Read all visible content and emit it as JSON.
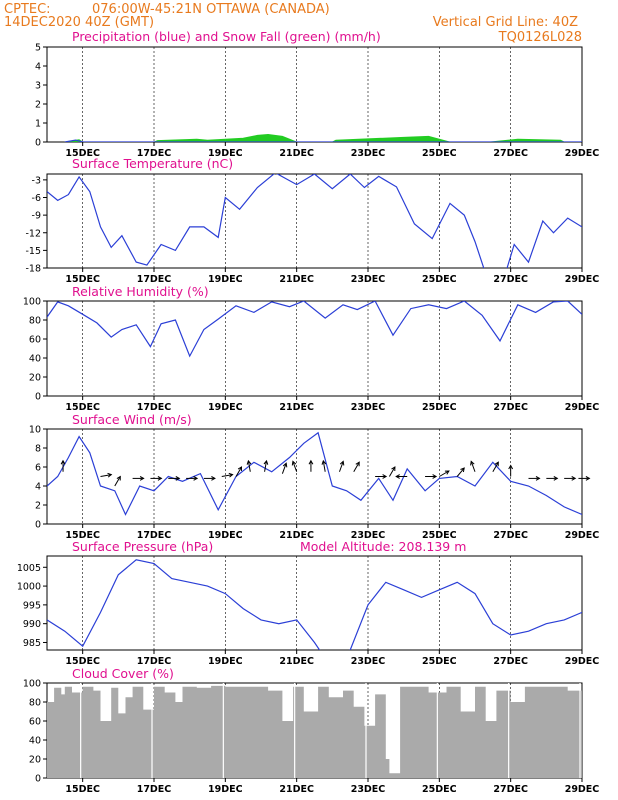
{
  "header": {
    "source": "CPTEC:",
    "location": "076:00W-45:21N   OTTAWA (CANADA)",
    "run": "14DEC2020 40Z (GMT)",
    "grid_note": "Vertical Grid Line: 40Z",
    "code": "TQ0126L028"
  },
  "x_ticks": [
    "15DEC",
    "17DEC",
    "19DEC",
    "21DEC",
    "23DEC",
    "25DEC",
    "27DEC",
    "29DEC"
  ],
  "colors": {
    "header": "#e87a1e",
    "title": "#e0108f",
    "line": "#2b3fd6",
    "snow": "#22cc22",
    "cloud": "#aaaaaa",
    "arrow": "#000000"
  },
  "chart_data": [
    {
      "id": "precip",
      "type": "area",
      "title": "Precipitation (blue) and Snow Fall (green) (mm/h)",
      "ylim": [
        0,
        5
      ],
      "yticks": [
        0,
        1,
        2,
        3,
        4,
        5
      ],
      "grid": false,
      "snow": {
        "x": [
          0.5,
          0.9,
          1.0,
          3.0,
          3.1,
          4.2,
          4.5,
          5.5,
          5.9,
          6.2,
          6.6,
          7.0,
          8.0,
          8.1,
          10.0,
          10.7,
          11.3,
          12.4,
          13.2,
          14.4,
          14.5,
          15.0
        ],
        "y": [
          0,
          0.12,
          0,
          0,
          0.08,
          0.15,
          0.1,
          0.2,
          0.35,
          0.4,
          0.3,
          0,
          0,
          0.1,
          0.25,
          0.3,
          0,
          0,
          0.15,
          0.1,
          0,
          0
        ]
      },
      "precip": {
        "x": [
          0.5,
          0.8,
          1.0,
          15.0
        ],
        "y": [
          0,
          0.1,
          0,
          0
        ]
      }
    },
    {
      "id": "temperature",
      "type": "line",
      "title": "Surface Temperature (nC)",
      "ylim": [
        -18,
        -2
      ],
      "yticks": [
        -3,
        -6,
        -9,
        -12,
        -15,
        -18
      ],
      "grid": false,
      "x": [
        0,
        0.3,
        0.6,
        0.9,
        1.2,
        1.5,
        1.8,
        2.1,
        2.5,
        2.8,
        3.2,
        3.6,
        4.0,
        4.4,
        4.8,
        5.0,
        5.4,
        5.9,
        6.4,
        7.0,
        7.5,
        8.0,
        8.5,
        8.9,
        9.3,
        9.8,
        10.3,
        10.8,
        11.3,
        11.7,
        12.0,
        12.3,
        12.8,
        13.1,
        13.5,
        13.9,
        14.2,
        14.6,
        15.0
      ],
      "y": [
        -5,
        -6.5,
        -5.5,
        -2.5,
        -5,
        -11,
        -14.5,
        -12.5,
        -17,
        -17.5,
        -14,
        -15,
        -11,
        -11,
        -12.8,
        -6,
        -8,
        -4.3,
        -1.8,
        -3.8,
        -2,
        -4.5,
        -2,
        -4.3,
        -2.4,
        -4.2,
        -10.5,
        -13,
        -7,
        -9,
        -13.5,
        -19,
        -20,
        -14,
        -17,
        -10,
        -12,
        -9.5,
        -11
      ]
    },
    {
      "id": "humidity",
      "type": "line",
      "title": "Relative Humidity (%)",
      "ylim": [
        0,
        100
      ],
      "yticks": [
        0,
        20,
        40,
        60,
        80,
        100
      ],
      "grid": false,
      "x": [
        0,
        0.3,
        0.6,
        1.0,
        1.4,
        1.8,
        2.1,
        2.5,
        2.9,
        3.2,
        3.6,
        4.0,
        4.4,
        4.8,
        5.3,
        5.8,
        6.3,
        6.8,
        7.2,
        7.8,
        8.3,
        8.7,
        9.2,
        9.7,
        10.2,
        10.7,
        11.2,
        11.7,
        12.2,
        12.7,
        13.2,
        13.7,
        14.2,
        14.6,
        15.0
      ],
      "y": [
        83,
        99,
        95,
        86,
        77,
        62,
        70,
        75,
        52,
        76,
        80,
        42,
        70,
        81,
        95,
        88,
        99,
        94,
        100,
        82,
        96,
        91,
        100,
        64,
        92,
        96,
        92,
        100,
        85,
        58,
        96,
        88,
        99,
        100,
        86
      ]
    },
    {
      "id": "wind",
      "type": "line",
      "title": "Surface Wind (m/s)",
      "ylim": [
        0,
        10
      ],
      "yticks": [
        0,
        2,
        4,
        6,
        8,
        10
      ],
      "grid": false,
      "x": [
        0,
        0.3,
        0.6,
        0.9,
        1.2,
        1.5,
        1.9,
        2.2,
        2.6,
        3.0,
        3.4,
        3.8,
        4.3,
        4.8,
        5.3,
        5.8,
        6.3,
        6.8,
        7.2,
        7.6,
        8.0,
        8.4,
        8.8,
        9.3,
        9.7,
        10.1,
        10.6,
        11.0,
        11.5,
        12.0,
        12.5,
        13.0,
        13.5,
        14.0,
        14.5,
        15.0
      ],
      "y": [
        4,
        5,
        7,
        9.2,
        7.5,
        4,
        3.5,
        1,
        4,
        3.5,
        5,
        4.5,
        5.3,
        1.5,
        5,
        6.5,
        5.5,
        7,
        8.5,
        9.6,
        4,
        3.5,
        2.5,
        4.8,
        2.5,
        5.8,
        3.5,
        4.8,
        5,
        4,
        6.5,
        4.5,
        4,
        3,
        1.8,
        1
      ],
      "arrows": [
        {
          "x": 0.45,
          "speed": 5.5,
          "dir": 90
        },
        {
          "x": 1.5,
          "speed": 5,
          "dir": 10
        },
        {
          "x": 1.9,
          "speed": 4,
          "dir": 60
        },
        {
          "x": 2.4,
          "speed": 4.8,
          "dir": 0
        },
        {
          "x": 2.9,
          "speed": 4.8,
          "dir": 0
        },
        {
          "x": 3.4,
          "speed": 4.8,
          "dir": 0
        },
        {
          "x": 3.9,
          "speed": 4.8,
          "dir": 0
        },
        {
          "x": 4.4,
          "speed": 4.8,
          "dir": 0
        },
        {
          "x": 4.9,
          "speed": 5,
          "dir": 10
        },
        {
          "x": 5.3,
          "speed": 5,
          "dir": 60
        },
        {
          "x": 5.7,
          "speed": 5.5,
          "dir": 100
        },
        {
          "x": 6.1,
          "speed": 5.5,
          "dir": 80
        },
        {
          "x": 6.6,
          "speed": 5.3,
          "dir": 70
        },
        {
          "x": 7.0,
          "speed": 5.5,
          "dir": 110
        },
        {
          "x": 7.4,
          "speed": 5.5,
          "dir": 90
        },
        {
          "x": 7.8,
          "speed": 5.5,
          "dir": 100
        },
        {
          "x": 8.2,
          "speed": 5.5,
          "dir": 70
        },
        {
          "x": 8.6,
          "speed": 5.5,
          "dir": 60
        },
        {
          "x": 9.2,
          "speed": 5,
          "dir": 0
        },
        {
          "x": 9.6,
          "speed": 5,
          "dir": 60
        },
        {
          "x": 10.1,
          "speed": 5,
          "dir": 180
        },
        {
          "x": 10.6,
          "speed": 5,
          "dir": 0
        },
        {
          "x": 11.0,
          "speed": 5,
          "dir": 30
        },
        {
          "x": 11.5,
          "speed": 5,
          "dir": 50
        },
        {
          "x": 12.0,
          "speed": 5.5,
          "dir": 110
        },
        {
          "x": 12.5,
          "speed": 5.5,
          "dir": 60
        },
        {
          "x": 13.0,
          "speed": 5,
          "dir": 90
        },
        {
          "x": 13.5,
          "speed": 4.8,
          "dir": 0
        },
        {
          "x": 14.0,
          "speed": 4.8,
          "dir": 0
        },
        {
          "x": 14.5,
          "speed": 4.8,
          "dir": 0
        },
        {
          "x": 14.9,
          "speed": 4.8,
          "dir": 0
        }
      ]
    },
    {
      "id": "pressure",
      "type": "line",
      "title": "Surface Pressure (hPa)",
      "annotation": "Model Altitude: 208.139 m",
      "ylim": [
        983,
        1008
      ],
      "yticks": [
        985,
        990,
        995,
        1000,
        1005
      ],
      "grid": false,
      "x": [
        0,
        0.5,
        1.0,
        1.5,
        2.0,
        2.5,
        3.0,
        3.5,
        4.0,
        4.5,
        5.0,
        5.5,
        6.0,
        6.5,
        7.0,
        7.5,
        8.0,
        8.5,
        9.0,
        9.5,
        10.0,
        10.5,
        11.0,
        11.5,
        12.0,
        12.5,
        13.0,
        13.5,
        14.0,
        14.5,
        15.0
      ],
      "y": [
        991,
        988,
        984,
        993,
        1003,
        1007,
        1006,
        1002,
        1001,
        1000,
        998,
        994,
        991,
        990,
        991,
        985,
        978,
        983,
        995,
        1001,
        999,
        997,
        999,
        1001,
        998,
        990,
        987,
        988,
        990,
        991,
        993
      ]
    },
    {
      "id": "cloud",
      "type": "area",
      "title": "Cloud Cover (%)",
      "ylim": [
        0,
        100
      ],
      "yticks": [
        0,
        20,
        40,
        60,
        80,
        100
      ],
      "grid": false,
      "x": [
        0,
        0.2,
        0.4,
        0.5,
        0.7,
        1.0,
        1.3,
        1.5,
        1.8,
        2.0,
        2.2,
        2.4,
        2.7,
        3.0,
        3.3,
        3.6,
        3.8,
        4.2,
        4.6,
        5.0,
        5.4,
        5.8,
        6.2,
        6.6,
        6.9,
        7.2,
        7.6,
        7.9,
        8.3,
        8.6,
        8.9,
        9.2,
        9.5,
        9.6,
        9.9,
        10.3,
        10.7,
        11.2,
        11.6,
        12.0,
        12.3,
        12.6,
        13.0,
        13.4,
        13.8,
        14.2,
        14.6,
        15.0
      ],
      "y": [
        80,
        95,
        88,
        96,
        90,
        96,
        92,
        60,
        95,
        68,
        85,
        96,
        72,
        96,
        90,
        80,
        96,
        95,
        97,
        96,
        96,
        96,
        92,
        60,
        96,
        70,
        96,
        85,
        92,
        75,
        55,
        88,
        20,
        5,
        96,
        96,
        90,
        96,
        70,
        96,
        60,
        92,
        80,
        96,
        96,
        96,
        92,
        76
      ]
    }
  ]
}
